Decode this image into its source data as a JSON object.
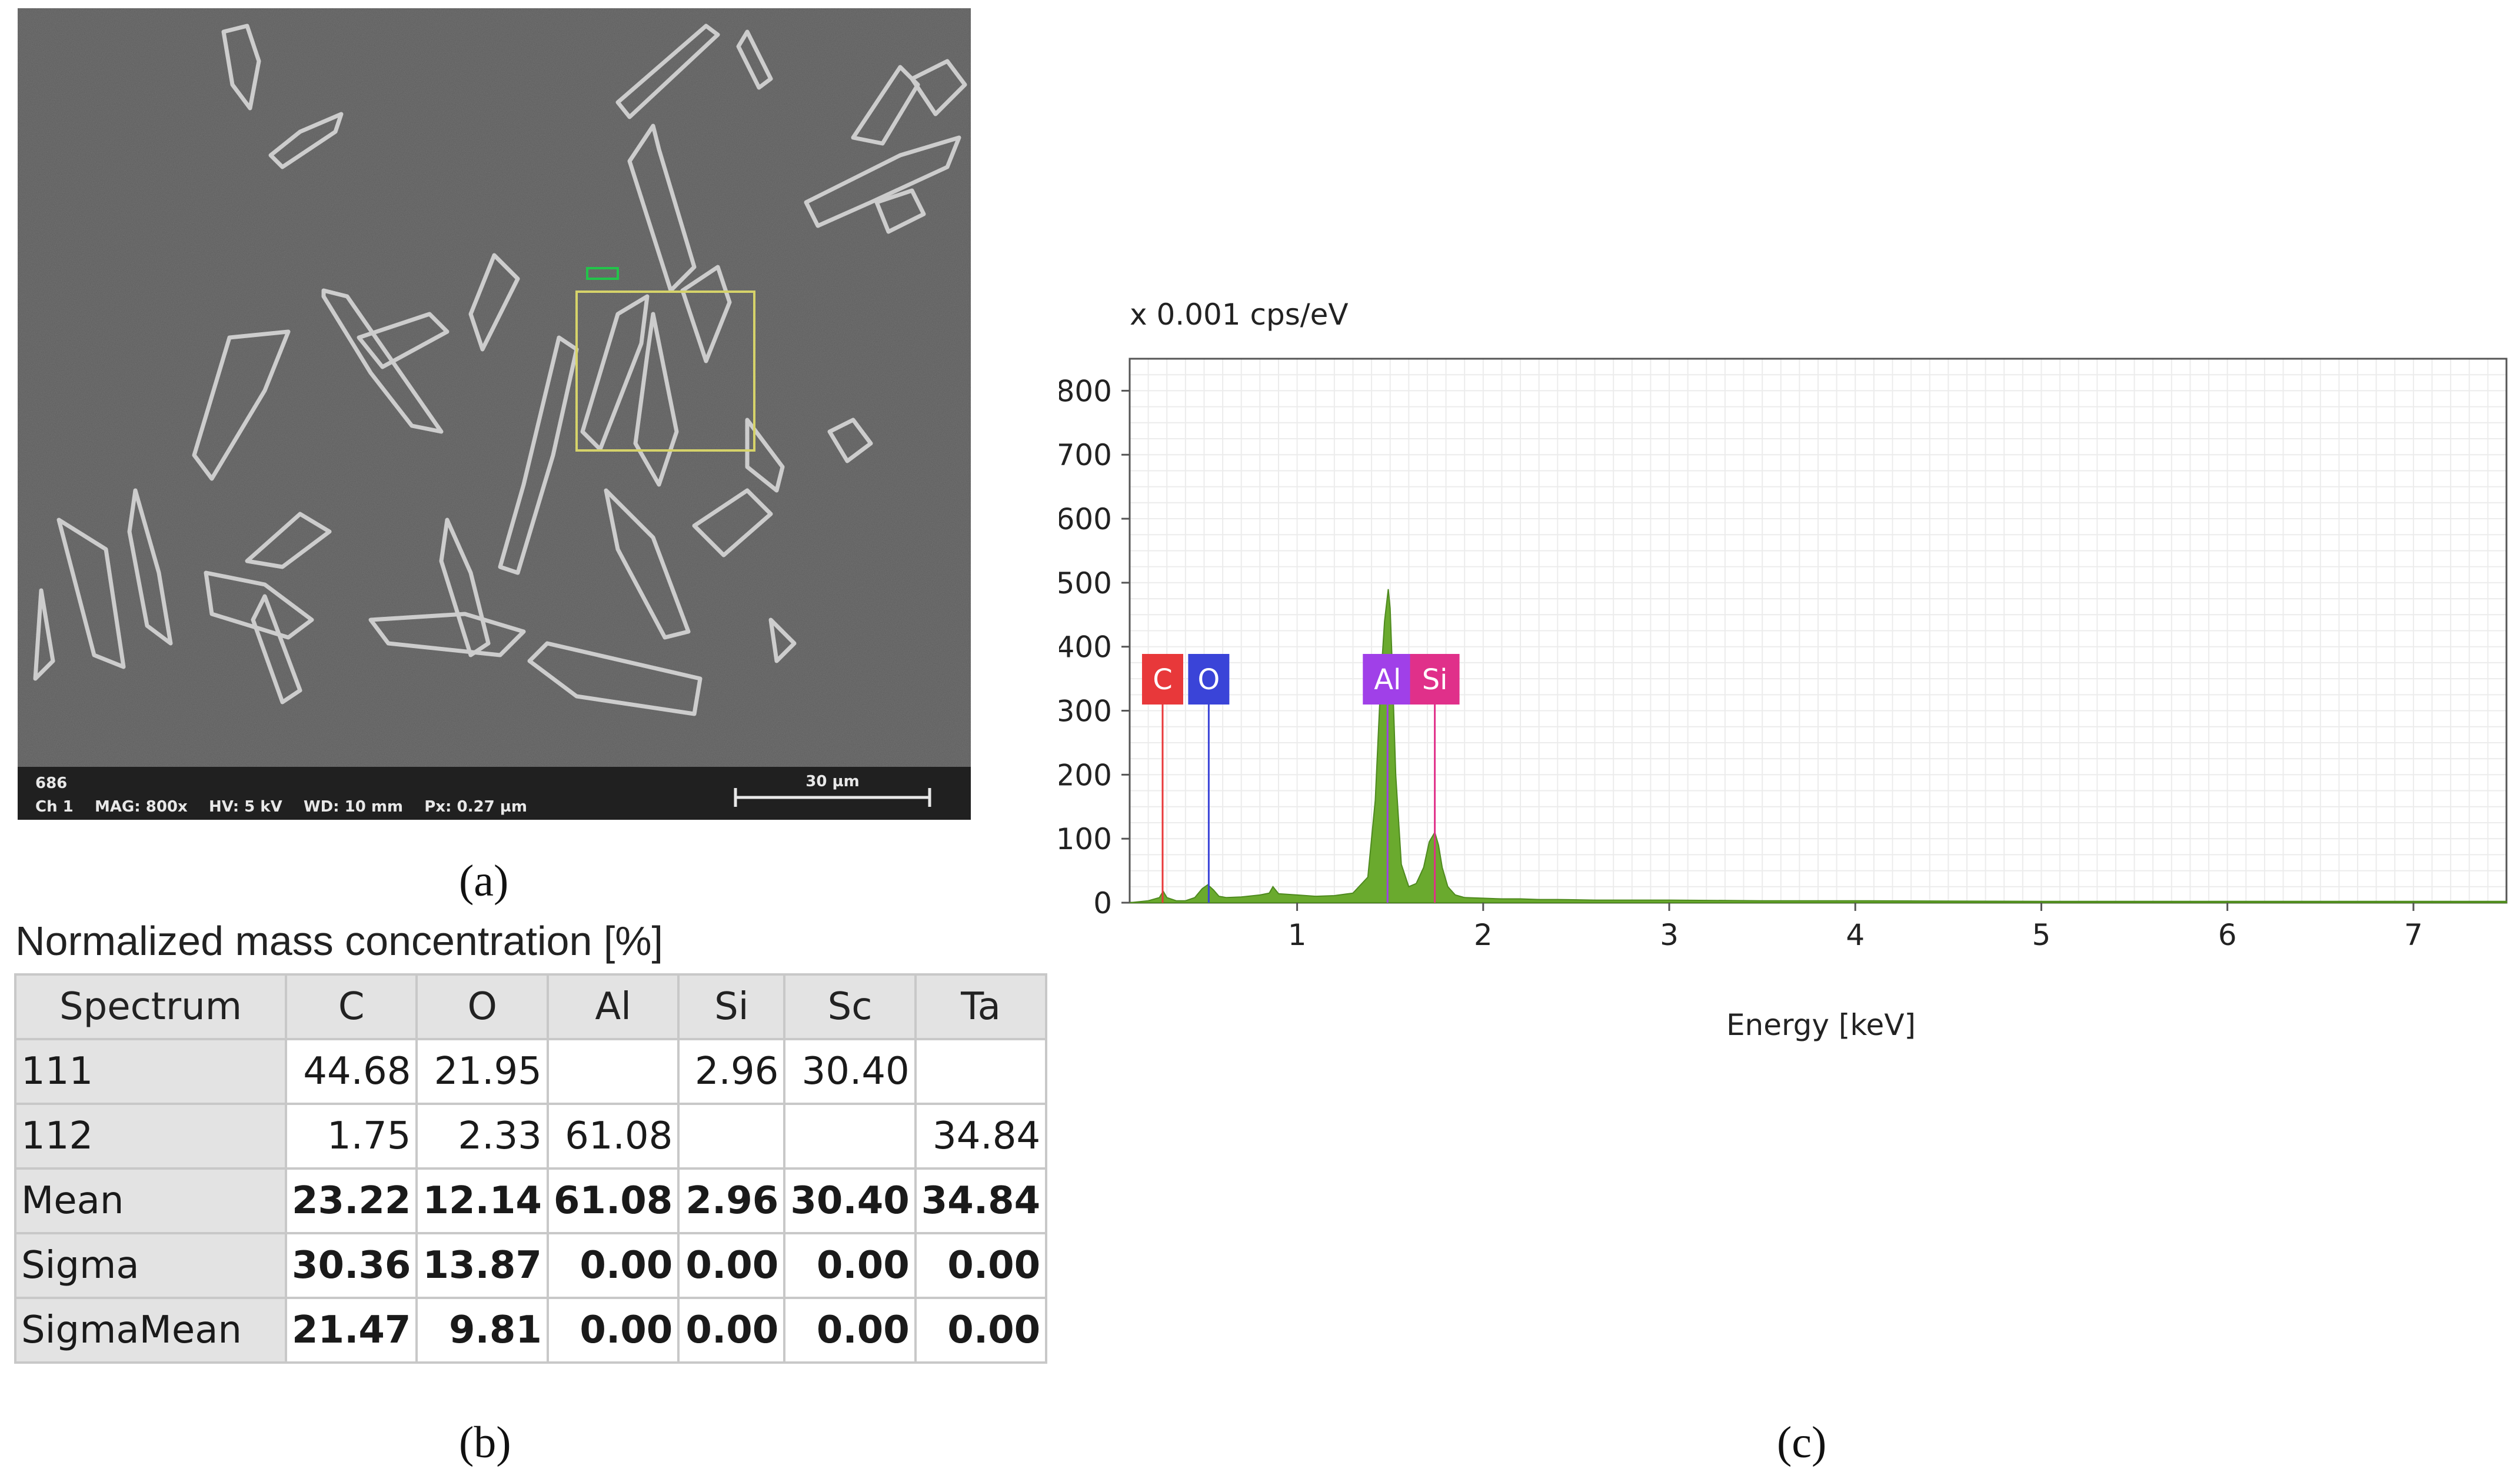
{
  "captions": {
    "a": "(a)",
    "b": "(b)",
    "c": "(c)"
  },
  "sem": {
    "info_line1": "686",
    "info_line2": "Ch 1    MAG: 800x    HV: 5 kV    WD: 10 mm    Px: 0.27 µm",
    "scale_bar_label": "30 µm",
    "colors": {
      "background": "#5a5a5a",
      "features": "#d8d8d8",
      "roi_box": "#d6d36a",
      "roi_marker": "#22c44a",
      "info_bar": "#202020"
    }
  },
  "table": {
    "title": "Normalized mass concentration [%]",
    "columns": [
      "Spectrum",
      "C",
      "O",
      "Al",
      "Si",
      "Sc",
      "Ta"
    ],
    "rows": [
      {
        "label": "111",
        "values": [
          "44.68",
          "21.95",
          "",
          "2.96",
          "30.40",
          ""
        ],
        "bold": false
      },
      {
        "label": "112",
        "values": [
          "1.75",
          "2.33",
          "61.08",
          "",
          "",
          "34.84"
        ],
        "bold": false
      },
      {
        "label": "Mean",
        "values": [
          "23.22",
          "12.14",
          "61.08",
          "2.96",
          "30.40",
          "34.84"
        ],
        "bold": true
      },
      {
        "label": "Sigma",
        "values": [
          "30.36",
          "13.87",
          "0.00",
          "0.00",
          "0.00",
          "0.00"
        ],
        "bold": true
      },
      {
        "label": "SigmaMean",
        "values": [
          "21.47",
          "9.81",
          "0.00",
          "0.00",
          "0.00",
          "0.00"
        ],
        "bold": true
      }
    ]
  },
  "chart_data": {
    "type": "area",
    "title": "",
    "ylabel": "x 0.001 cps/eV",
    "xlabel": "Energy [keV]",
    "xlim": [
      0.1,
      7.5
    ],
    "ylim": [
      0,
      850
    ],
    "xticks": [
      1,
      2,
      3,
      4,
      5,
      6,
      7
    ],
    "yticks": [
      0,
      100,
      200,
      300,
      400,
      500,
      600,
      700,
      800
    ],
    "grid": true,
    "series_color": "#6aaa2e",
    "spectrum": {
      "x": [
        0.1,
        0.2,
        0.26,
        0.28,
        0.3,
        0.35,
        0.4,
        0.45,
        0.49,
        0.52,
        0.55,
        0.58,
        0.62,
        0.7,
        0.8,
        0.85,
        0.87,
        0.9,
        1.0,
        1.1,
        1.2,
        1.3,
        1.38,
        1.42,
        1.45,
        1.47,
        1.49,
        1.5,
        1.51,
        1.53,
        1.56,
        1.6,
        1.64,
        1.68,
        1.71,
        1.74,
        1.76,
        1.78,
        1.81,
        1.85,
        1.9,
        2.0,
        2.1,
        2.2,
        2.3,
        2.4,
        2.6,
        3.0,
        3.5,
        4.0,
        5.0,
        6.0,
        7.0,
        7.5
      ],
      "y": [
        0,
        3,
        8,
        18,
        8,
        3,
        3,
        8,
        22,
        28,
        20,
        10,
        8,
        9,
        12,
        15,
        25,
        14,
        12,
        10,
        11,
        15,
        40,
        160,
        350,
        440,
        490,
        460,
        380,
        200,
        60,
        25,
        30,
        55,
        95,
        110,
        90,
        55,
        25,
        12,
        8,
        7,
        6,
        6,
        5,
        5,
        4,
        4,
        3,
        3,
        2,
        2,
        2,
        2
      ]
    },
    "element_markers": [
      {
        "label": "C",
        "energy": 0.277,
        "color": "#e8383a"
      },
      {
        "label": "O",
        "energy": 0.525,
        "color": "#3a44d8"
      },
      {
        "label": "Al",
        "energy": 1.486,
        "color": "#a040e8"
      },
      {
        "label": "Si",
        "energy": 1.74,
        "color": "#e0308a"
      }
    ]
  }
}
